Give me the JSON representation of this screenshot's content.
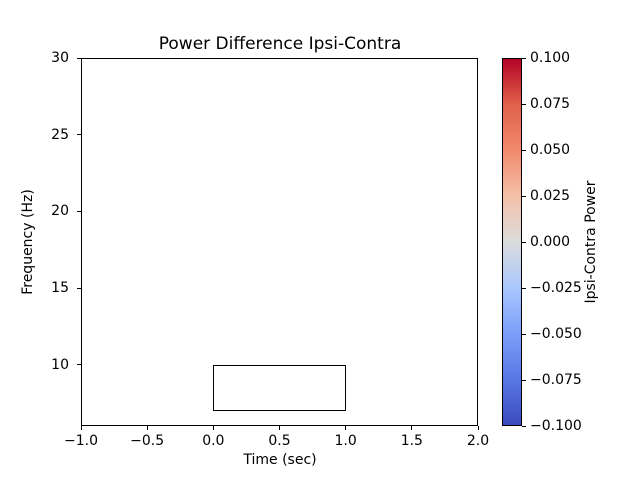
{
  "figure": {
    "background": "#ffffff",
    "text_color": "#000000",
    "box_edge_color": "#000000"
  },
  "chart_data": {
    "type": "heatmap",
    "title": "Power Difference Ipsi-Contra",
    "xlabel": "Time (sec)",
    "ylabel": "Frequency (Hz)",
    "xlim": [
      -1.0,
      2.0
    ],
    "ylim": [
      6,
      30
    ],
    "grid": false,
    "plot_area_color": "#ffffff",
    "data_note": "plot interior renders blank white (zero / masked power difference values)",
    "xticks": [
      {
        "value": -1.0,
        "label": "−1.0"
      },
      {
        "value": -0.5,
        "label": "−0.5"
      },
      {
        "value": 0.0,
        "label": "0.0"
      },
      {
        "value": 0.5,
        "label": "0.5"
      },
      {
        "value": 1.0,
        "label": "1.0"
      },
      {
        "value": 1.5,
        "label": "1.5"
      },
      {
        "value": 2.0,
        "label": "2.0"
      }
    ],
    "yticks": [
      {
        "value": 10,
        "label": "10"
      },
      {
        "value": 15,
        "label": "15"
      },
      {
        "value": 20,
        "label": "20"
      },
      {
        "value": 25,
        "label": "25"
      },
      {
        "value": 30,
        "label": "30"
      }
    ],
    "annotation_box": {
      "time_start": 0.0,
      "time_end": 1.0,
      "freq_low": 7,
      "freq_high": 10,
      "edge_color": "#000000",
      "fill": "transparent"
    },
    "colorbar": {
      "label": "Ipsi-Contra Power",
      "vmin": -0.1,
      "vmax": 0.1,
      "colormap": "coolwarm",
      "edge_color": "#000000",
      "gradient_stops_bottom_to_top": [
        "#3b4cc0",
        "#5977e3",
        "#7b9ff9",
        "#aac7fd",
        "#dcdcdc",
        "#f5c0a9",
        "#f08a6c",
        "#e0614a",
        "#b40426"
      ],
      "ticks": [
        {
          "value": 0.1,
          "label": "0.100"
        },
        {
          "value": 0.075,
          "label": "0.075"
        },
        {
          "value": 0.05,
          "label": "0.050"
        },
        {
          "value": 0.025,
          "label": "0.025"
        },
        {
          "value": 0.0,
          "label": "0.000"
        },
        {
          "value": -0.025,
          "label": "−0.025"
        },
        {
          "value": -0.05,
          "label": "−0.050"
        },
        {
          "value": -0.075,
          "label": "−0.075"
        },
        {
          "value": -0.1,
          "label": "−0.100"
        }
      ]
    }
  }
}
